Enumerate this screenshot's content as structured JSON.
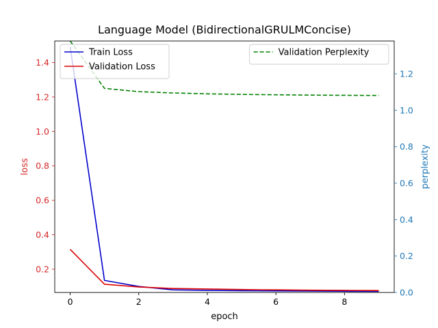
{
  "chart_data": {
    "type": "line",
    "title": "Language Model (BidirectionalGRULMConcise)",
    "xlabel": "epoch",
    "ylabel_left": "loss",
    "ylabel_right": "perplexity",
    "x": [
      0,
      1,
      2,
      3,
      4,
      5,
      6,
      7,
      8,
      9
    ],
    "xlim": [
      -0.45,
      9.45
    ],
    "xticks": [
      "0",
      "2",
      "4",
      "6",
      "8"
    ],
    "left_axis": {
      "ylim": [
        0.065,
        1.525
      ],
      "ticks": [
        "0.2",
        "0.4",
        "0.6",
        "0.8",
        "1.0",
        "1.2",
        "1.4"
      ],
      "color": "#d62728"
    },
    "right_axis": {
      "ylim": [
        0.0,
        1.38
      ],
      "ticks": [
        "0.0",
        "0.2",
        "0.4",
        "0.6",
        "0.8",
        "1.0",
        "1.2"
      ],
      "color": "#1f77b4"
    },
    "series": [
      {
        "name": "Train Loss",
        "axis": "left",
        "color": "#0000cc",
        "style": "solid",
        "values": [
          1.49,
          0.135,
          0.1,
          0.08,
          0.077,
          0.075,
          0.074,
          0.073,
          0.072,
          0.071
        ]
      },
      {
        "name": "Validation Loss",
        "axis": "left",
        "color": "#dd0000",
        "style": "solid",
        "values": [
          0.315,
          0.113,
          0.097,
          0.088,
          0.085,
          0.082,
          0.08,
          0.078,
          0.077,
          0.076
        ]
      },
      {
        "name": "Validation Perplexity",
        "axis": "right",
        "color": "#008000",
        "style": "dashed",
        "values": [
          1.38,
          1.12,
          1.102,
          1.095,
          1.09,
          1.087,
          1.085,
          1.083,
          1.082,
          1.081
        ]
      }
    ],
    "legends": [
      {
        "placement": "upper-left",
        "entries": [
          "Train Loss",
          "Validation Loss"
        ]
      },
      {
        "placement": "upper-right",
        "entries": [
          "Validation Perplexity"
        ]
      }
    ]
  }
}
